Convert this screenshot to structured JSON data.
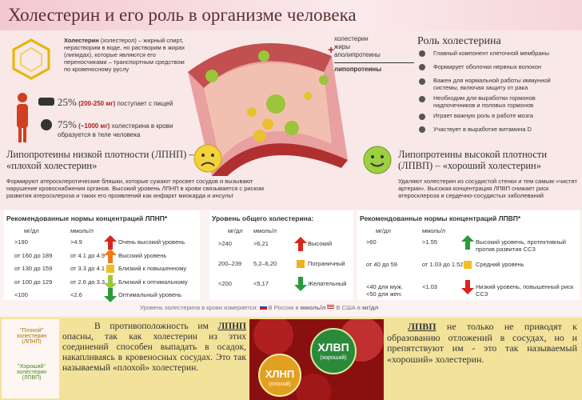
{
  "header": {
    "title": "Холестерин и его роль в организме человека"
  },
  "intro": {
    "term": "Холестерин",
    "text": "(холестерол) – жирный спирт, нерастворим в воде, но растворим в жирах (липидах), которые являются его переносчиками – транспортным средством по кровеносному руслу"
  },
  "intake": [
    {
      "percent": "25%",
      "amount": "(200-250 мг)",
      "text": "поступает с пищей"
    },
    {
      "percent": "75%",
      "amount": "(~1000 мг)",
      "text": "холестерина в крови образуется в теле человека"
    }
  ],
  "legend": [
    "холестерин",
    "жиры",
    "аполипротеины",
    "липопротеины"
  ],
  "role": {
    "title": "Роль холестерина",
    "items": [
      "Главный компонент клеточной мембраны",
      "Формирует оболочки нервных волокон",
      "Важен для нормальной работы иммунной системы, включая защиту от рака",
      "Необходим для выработки гормонов надпочечников и половых гормонов",
      "Играет важную роль в работе мозга",
      "Участвует в выработке витамина D"
    ]
  },
  "ldl": {
    "title": "Липопротеины низкой плотности (ЛПНП) – «плохой холестерин»",
    "description": "Формируют атеросклеротические бляшки, которые сужают просвет сосудов и вызывают нарушение кровоснабжения органов. Высокий уровень ЛПНП в крови связывается с риском развития атеросклероза и таких его проявлений как инфаркт миокарда и инсульт"
  },
  "hdl": {
    "title": "Липопротеины высокой плотности (ЛПВП) – «хороший холестерин»",
    "description": "Удаляют холестерин из сосудистой стенки и тем самым «чистят артерии». Высокая концентрация ЛПВП снижает риск атеросклероза и сердечно-сосудистых заболеваний"
  },
  "tables": [
    {
      "title": "Рекомендованные нормы концентраций ЛПНП*",
      "headers": [
        "мг/дл",
        "ммоль/л"
      ],
      "rows": [
        [
          ">190",
          ">4.9",
          "Очень высокий уровень"
        ],
        [
          "от 160 до 189",
          "от 4.1 до 4.9",
          "Высокий уровень"
        ],
        [
          "от 130 до 159",
          "от 3.3 до 4.1",
          "Близкий к повышенному"
        ],
        [
          "от 100 до 129",
          "от 2.6 до 3.3",
          "Близкий к оптимальному"
        ],
        [
          "<100",
          "<2.6",
          "Оптимальный уровень"
        ]
      ]
    },
    {
      "title": "Уровень общего холестерина:",
      "headers": [
        "мг/дл",
        "ммоль/л"
      ],
      "rows": [
        [
          ">240",
          ">6,21",
          "Высокий"
        ],
        [
          "200–239",
          "5,2–6,20",
          "Пограничный"
        ],
        [
          "<200",
          "<5,17",
          "Желательный"
        ]
      ]
    },
    {
      "title": "Рекомендованные нормы концентраций ЛПВП*",
      "headers": [
        "мг/дл",
        "ммоль/л"
      ],
      "rows": [
        [
          ">60",
          ">1.55",
          "Высокий уровень, протективный против развития ССЗ"
        ],
        [
          "от 40 до 59",
          "от 1.03 до 1.52",
          "Средний уровень"
        ],
        [
          "<40 для муж. <50 для жен.",
          "<1.03",
          "Низкий уровень, повышенный риск ССЗ"
        ]
      ]
    }
  ],
  "footnote": {
    "text": "Уровень холестерина в крови измеряется:",
    "russia": "В России в",
    "russia_unit": "ммоль/л",
    "usa": "В США в",
    "usa_unit": "мг/дл"
  },
  "bottom": {
    "labels": [
      "\"Плохой\" холестерин (ЛПНП)",
      "\"Хороший\" холестерин (ЛПВП)"
    ],
    "left_start": "В противоположность им",
    "left_term": "ЛПНП",
    "left_text": "опасны, так как холестерин из этих соединений способен выпадать в осадок, накапливаясь в кровеносных сосудах. Это так называемый «плохой» холестерин.",
    "image_labels": [
      "ХЛВП",
      "(хороший)",
      "ХЛНП",
      "(плохой)"
    ],
    "right_term": "ЛПВП",
    "right_text": "не только не приводят к образованию отложений в сосудах, но и препятствуют им - это так называемый «хороший» холестерин."
  }
}
